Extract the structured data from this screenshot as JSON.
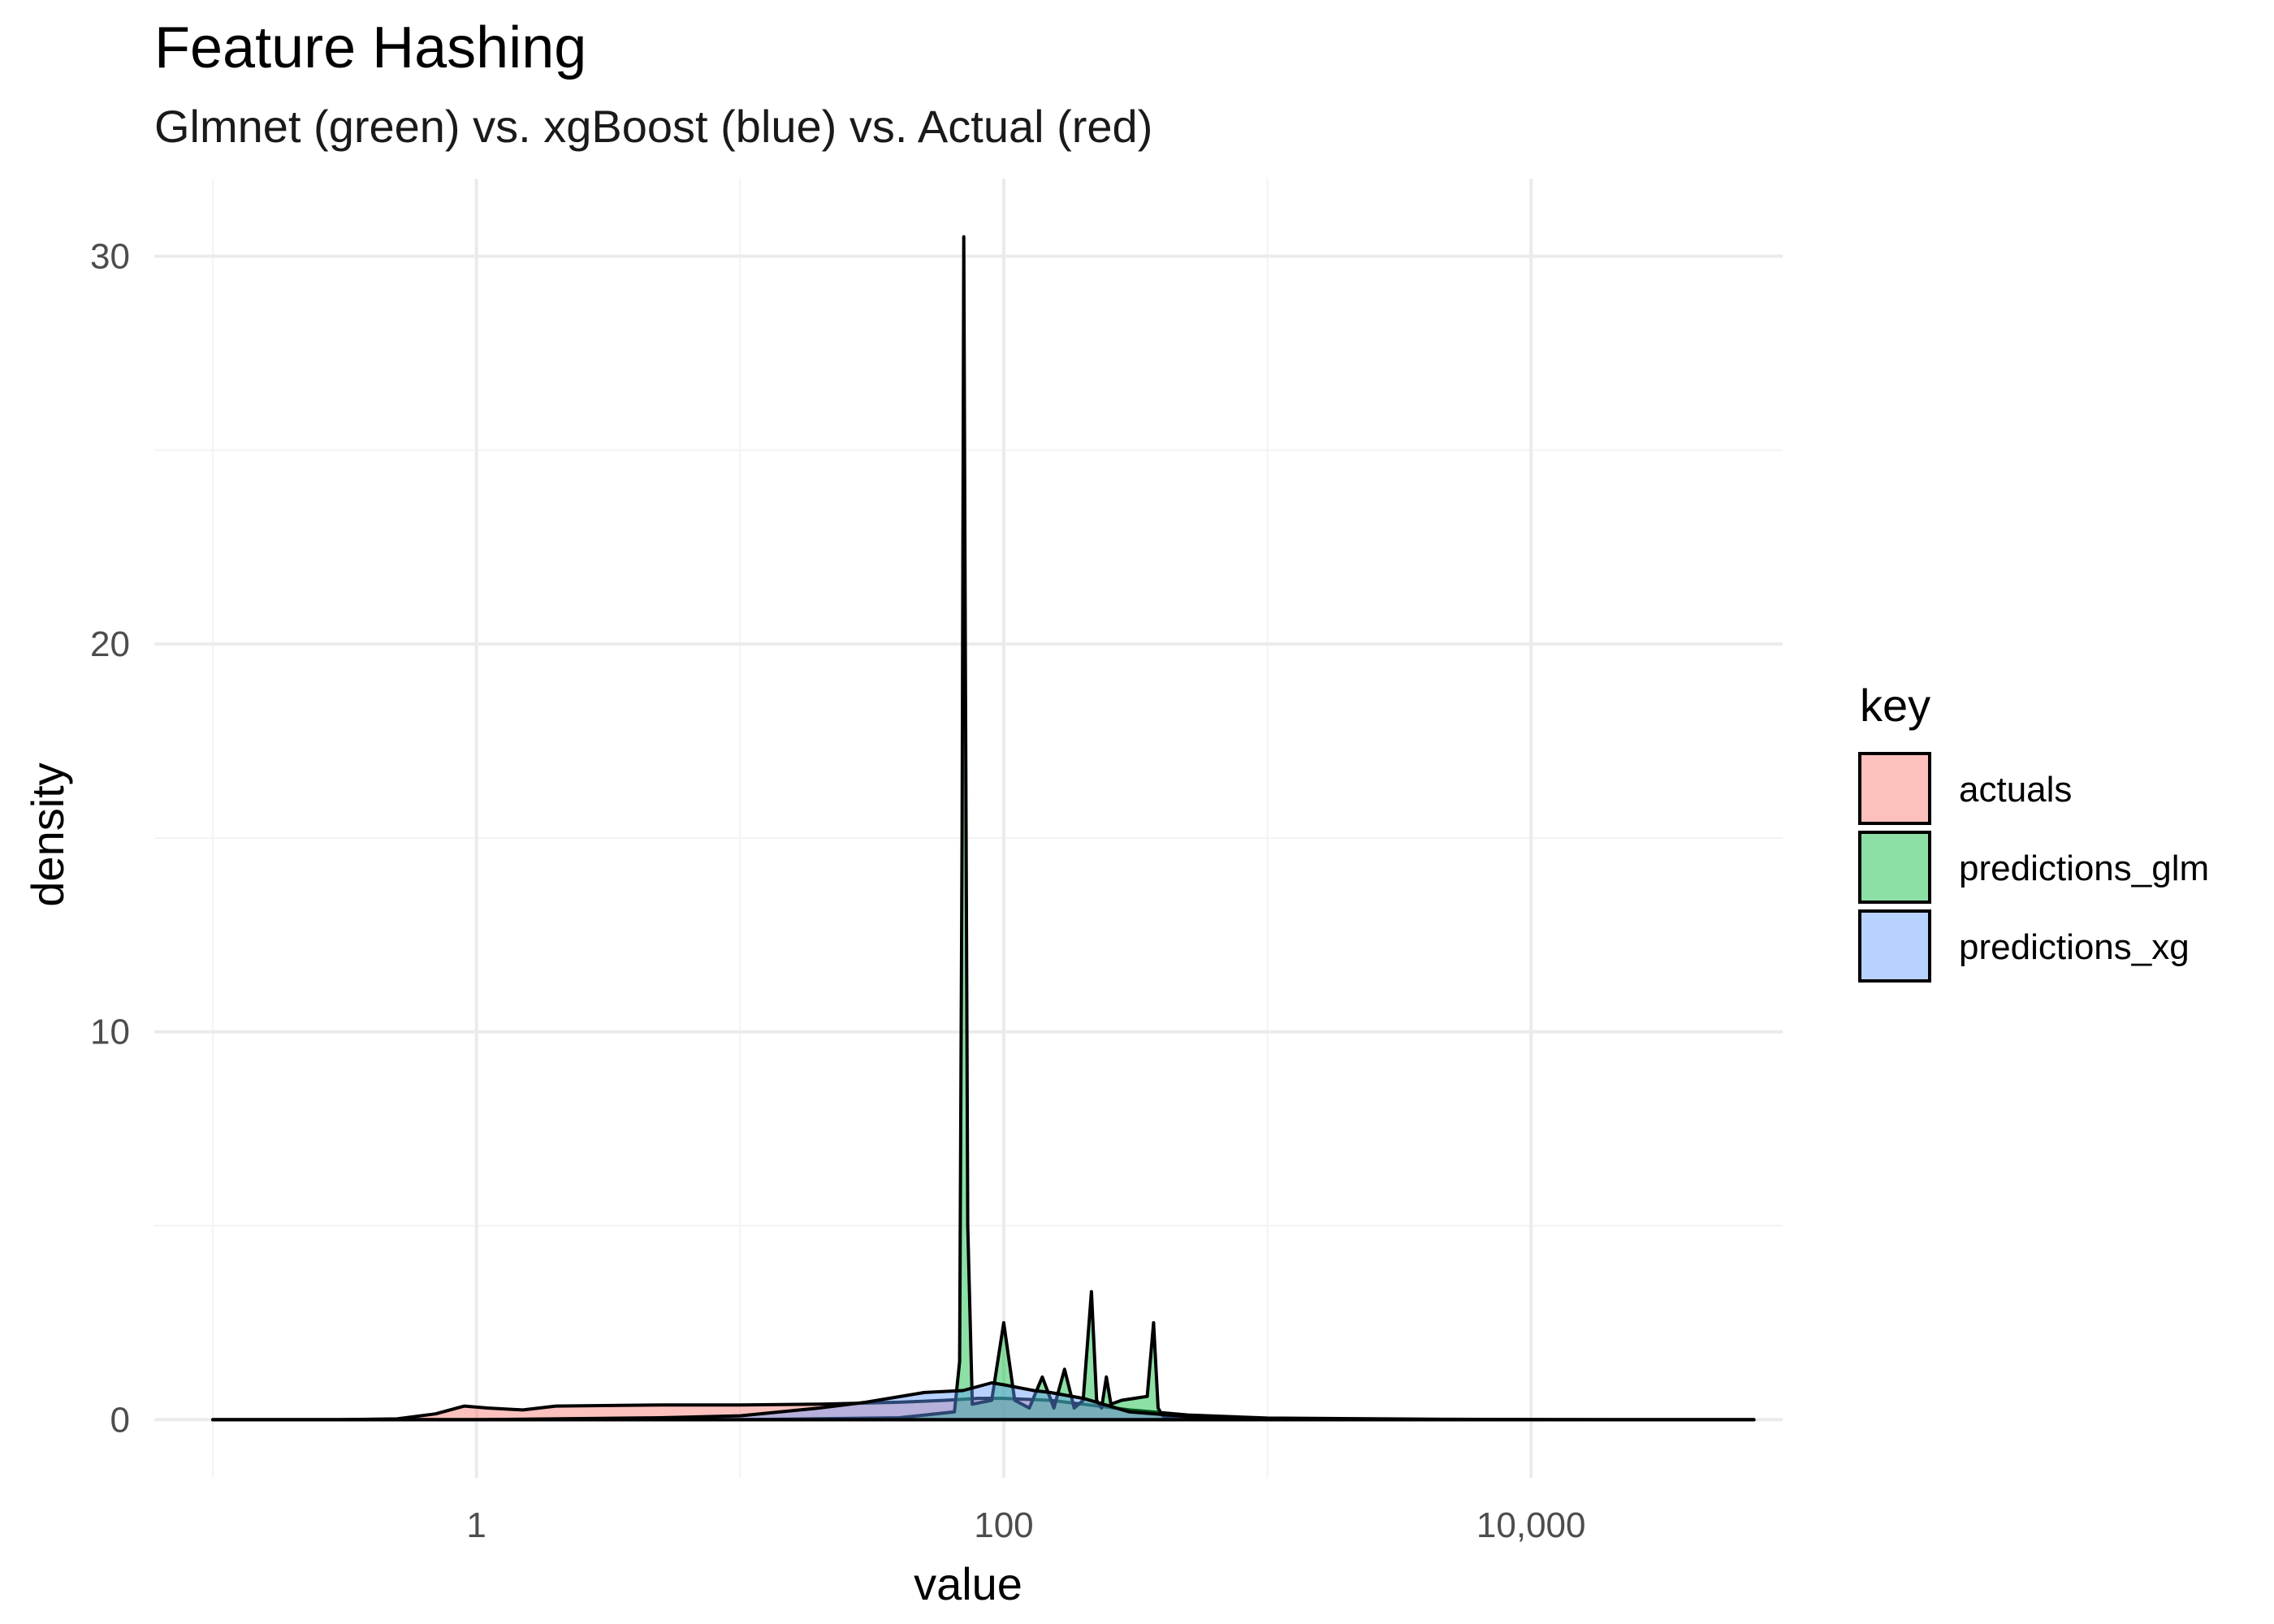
{
  "chart_data": {
    "type": "area",
    "title": "Feature Hashing",
    "subtitle": "Glmnet (green) vs. xgBoost (blue) vs. Actual (red)",
    "xlabel": "value",
    "ylabel": "density",
    "x_scale": "log10",
    "xlim": [
      0.06,
      90000
    ],
    "ylim": [
      -1.5,
      32
    ],
    "x_ticks": [
      1,
      100,
      10000
    ],
    "x_tick_labels": [
      "1",
      "100",
      "10,000"
    ],
    "y_ticks": [
      0,
      10,
      20,
      30
    ],
    "y_tick_labels": [
      "0",
      "10",
      "20",
      "30"
    ],
    "grid": true,
    "legend": {
      "title": "key",
      "position": "right"
    },
    "series": [
      {
        "name": "actuals",
        "color": "#F8766D",
        "x": [
          0.1,
          0.3,
          0.5,
          0.7,
          0.9,
          1.1,
          1.5,
          2,
          5,
          10,
          20,
          40,
          60,
          80,
          100,
          150,
          200,
          300,
          500,
          1000,
          5000,
          20000,
          70000
        ],
        "y": [
          0,
          0,
          0.02,
          0.15,
          0.35,
          0.3,
          0.25,
          0.35,
          0.38,
          0.38,
          0.4,
          0.45,
          0.5,
          0.55,
          0.55,
          0.5,
          0.4,
          0.25,
          0.12,
          0.04,
          0.01,
          0,
          0
        ]
      },
      {
        "name": "predictions_glm",
        "color": "#00BA38",
        "x": [
          0.1,
          10,
          40,
          65,
          68,
          69.5,
          70.5,
          71.5,
          73,
          76,
          90,
          100,
          110,
          125,
          140,
          155,
          170,
          185,
          200,
          215,
          225,
          235,
          245,
          255,
          280,
          350,
          370,
          385,
          400,
          420,
          1000,
          70000
        ],
        "y": [
          0,
          0,
          0.05,
          0.2,
          1.5,
          15,
          30.5,
          20,
          5,
          0.4,
          0.5,
          2.5,
          0.5,
          0.3,
          1.1,
          0.3,
          1.3,
          0.3,
          0.5,
          3.3,
          0.5,
          0.3,
          1.1,
          0.4,
          0.5,
          0.6,
          2.5,
          0.3,
          0.1,
          0.05,
          0,
          0
        ]
      },
      {
        "name": "predictions_xg",
        "color": "#619CFF",
        "x": [
          0.1,
          1,
          5,
          10,
          20,
          30,
          50,
          70,
          90,
          100,
          130,
          150,
          200,
          300,
          500,
          1000,
          3000,
          10000,
          70000
        ],
        "y": [
          0,
          0,
          0.05,
          0.1,
          0.3,
          0.45,
          0.7,
          0.75,
          0.95,
          0.9,
          0.75,
          0.7,
          0.55,
          0.2,
          0.08,
          0.03,
          0.01,
          0,
          0
        ]
      }
    ]
  }
}
